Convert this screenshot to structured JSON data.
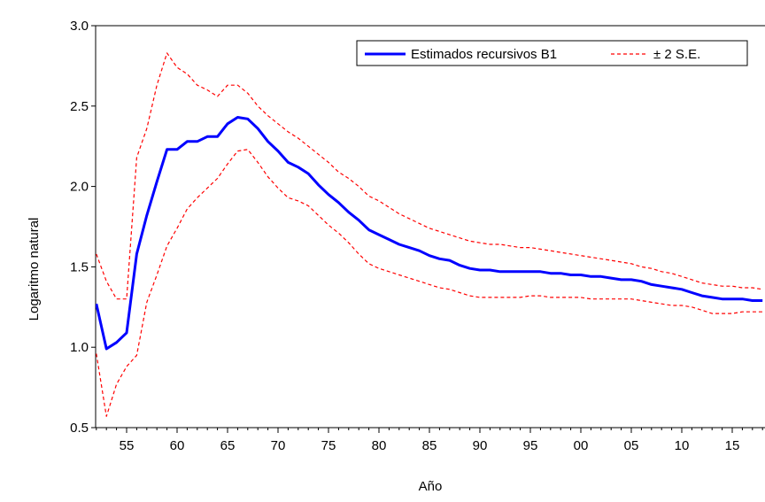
{
  "chart_data": {
    "type": "line",
    "title": "",
    "xlabel": "Año",
    "ylabel": "Logaritmo natural",
    "ylim": [
      0.5,
      3.0
    ],
    "xlim": [
      1952,
      2018
    ],
    "y_ticks": [
      "0.5",
      "1.0",
      "1.5",
      "2.0",
      "2.5",
      "3.0"
    ],
    "x_ticks": [
      {
        "year": 1955,
        "label": "55"
      },
      {
        "year": 1960,
        "label": "60"
      },
      {
        "year": 1965,
        "label": "65"
      },
      {
        "year": 1970,
        "label": "70"
      },
      {
        "year": 1975,
        "label": "75"
      },
      {
        "year": 1980,
        "label": "80"
      },
      {
        "year": 1985,
        "label": "85"
      },
      {
        "year": 1990,
        "label": "90"
      },
      {
        "year": 1995,
        "label": "95"
      },
      {
        "year": 2000,
        "label": "00"
      },
      {
        "year": 2005,
        "label": "05"
      },
      {
        "year": 2010,
        "label": "10"
      },
      {
        "year": 2015,
        "label": "15"
      }
    ],
    "grid": false,
    "legend_position": "top-right",
    "x": [
      1952,
      1953,
      1954,
      1955,
      1956,
      1957,
      1958,
      1959,
      1960,
      1961,
      1962,
      1963,
      1964,
      1965,
      1966,
      1967,
      1968,
      1969,
      1970,
      1971,
      1972,
      1973,
      1974,
      1975,
      1976,
      1977,
      1978,
      1979,
      1980,
      1981,
      1982,
      1983,
      1984,
      1985,
      1986,
      1987,
      1988,
      1989,
      1990,
      1991,
      1992,
      1993,
      1994,
      1995,
      1996,
      1997,
      1998,
      1999,
      2000,
      2001,
      2002,
      2003,
      2004,
      2005,
      2006,
      2007,
      2008,
      2009,
      2010,
      2011,
      2012,
      2013,
      2014,
      2015,
      2016,
      2017,
      2018
    ],
    "series": [
      {
        "name": "Estimados recursivos B1",
        "color": "#0000ff",
        "style": "solid",
        "values": [
          1.27,
          0.99,
          1.03,
          1.09,
          1.58,
          1.82,
          2.03,
          2.23,
          2.23,
          2.28,
          2.28,
          2.31,
          2.31,
          2.39,
          2.43,
          2.42,
          2.36,
          2.28,
          2.22,
          2.15,
          2.12,
          2.08,
          2.01,
          1.95,
          1.9,
          1.84,
          1.79,
          1.73,
          1.7,
          1.67,
          1.64,
          1.62,
          1.6,
          1.57,
          1.55,
          1.54,
          1.51,
          1.49,
          1.48,
          1.48,
          1.47,
          1.47,
          1.47,
          1.47,
          1.47,
          1.46,
          1.46,
          1.45,
          1.45,
          1.44,
          1.44,
          1.43,
          1.42,
          1.42,
          1.41,
          1.39,
          1.38,
          1.37,
          1.36,
          1.34,
          1.32,
          1.31,
          1.3,
          1.3,
          1.3,
          1.29,
          1.29
        ]
      },
      {
        "name": "± 2 S.E.",
        "color": "#ff0000",
        "style": "dashed",
        "values": [
          1.58,
          1.41,
          1.3,
          1.3,
          2.18,
          2.36,
          2.63,
          2.83,
          2.74,
          2.7,
          2.63,
          2.6,
          2.56,
          2.63,
          2.63,
          2.58,
          2.5,
          2.44,
          2.39,
          2.34,
          2.3,
          2.25,
          2.2,
          2.15,
          2.09,
          2.05,
          2.0,
          1.94,
          1.91,
          1.87,
          1.83,
          1.8,
          1.77,
          1.74,
          1.72,
          1.7,
          1.68,
          1.66,
          1.65,
          1.64,
          1.64,
          1.63,
          1.62,
          1.62,
          1.61,
          1.6,
          1.59,
          1.58,
          1.57,
          1.56,
          1.55,
          1.54,
          1.53,
          1.52,
          1.5,
          1.49,
          1.47,
          1.46,
          1.44,
          1.42,
          1.4,
          1.39,
          1.38,
          1.38,
          1.37,
          1.37,
          1.36
        ]
      },
      {
        "name": "",
        "color": "#ff0000",
        "style": "dashed",
        "values": [
          0.96,
          0.57,
          0.77,
          0.88,
          0.95,
          1.28,
          1.45,
          1.63,
          1.74,
          1.86,
          1.93,
          1.99,
          2.05,
          2.14,
          2.22,
          2.23,
          2.15,
          2.06,
          1.99,
          1.93,
          1.91,
          1.88,
          1.82,
          1.76,
          1.71,
          1.65,
          1.58,
          1.52,
          1.49,
          1.47,
          1.45,
          1.43,
          1.41,
          1.39,
          1.37,
          1.36,
          1.34,
          1.32,
          1.31,
          1.31,
          1.31,
          1.31,
          1.31,
          1.32,
          1.32,
          1.31,
          1.31,
          1.31,
          1.31,
          1.3,
          1.3,
          1.3,
          1.3,
          1.3,
          1.29,
          1.28,
          1.27,
          1.26,
          1.26,
          1.25,
          1.23,
          1.21,
          1.21,
          1.21,
          1.22,
          1.22,
          1.22
        ]
      }
    ]
  }
}
